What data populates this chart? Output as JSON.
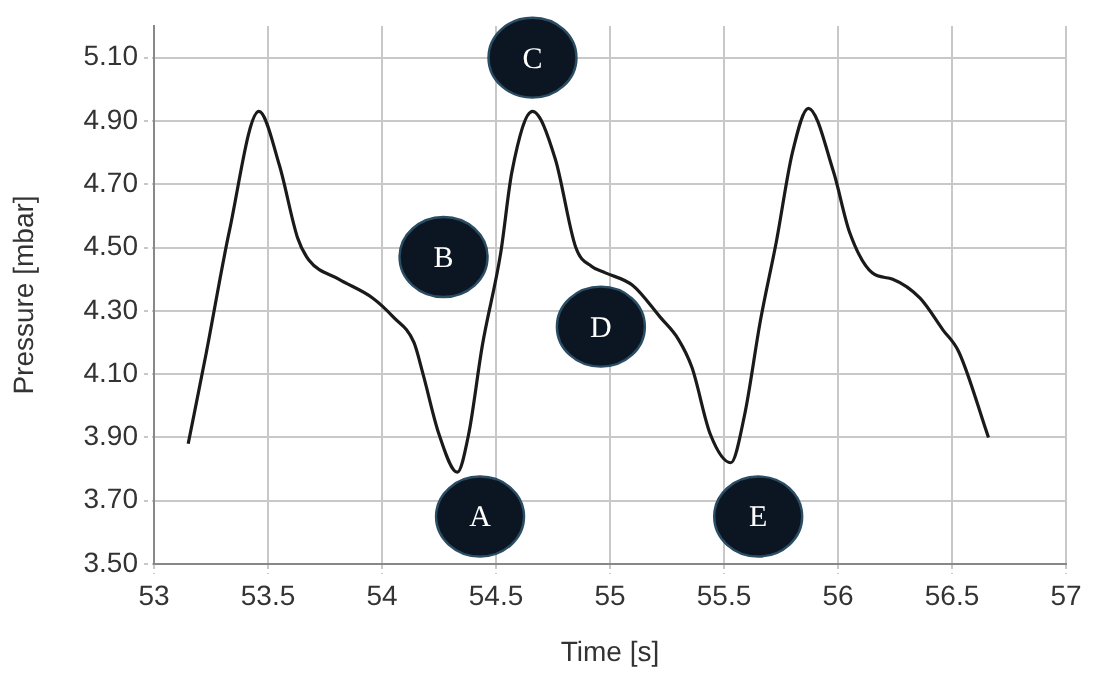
{
  "chart_data": {
    "type": "line",
    "xlabel": "Time [s]",
    "ylabel": "Pressure [mbar]",
    "xlim": [
      53,
      57
    ],
    "xticks": [
      53,
      53.5,
      54,
      54.5,
      55,
      55.5,
      56,
      56.5,
      57
    ],
    "ylim": [
      3.5,
      5.2
    ],
    "yticks": [
      {
        "value": 3.5,
        "label": "3.50"
      },
      {
        "value": 3.7,
        "label": "3.70"
      },
      {
        "value": 3.9,
        "label": "3.90"
      },
      {
        "value": 4.1,
        "label": "4.10"
      },
      {
        "value": 4.3,
        "label": "4.30"
      },
      {
        "value": 4.5,
        "label": "4.50"
      },
      {
        "value": 4.7,
        "label": "4.70"
      },
      {
        "value": 4.9,
        "label": "4.90"
      },
      {
        "value": 5.1,
        "label": "5.10"
      }
    ],
    "grid": true,
    "legend": false,
    "marker": "none",
    "line_style": "solid",
    "series": [
      {
        "color": "#1a1a1a",
        "x": [
          53.15,
          53.23,
          53.33,
          53.46,
          53.55,
          53.63,
          53.68,
          53.81,
          53.96,
          54.05,
          54.14,
          54.18,
          54.25,
          54.33,
          54.38,
          54.44,
          54.52,
          54.57,
          54.66,
          54.76,
          54.85,
          54.92,
          54.98,
          55.1,
          55.22,
          55.3,
          55.36,
          55.44,
          55.53,
          55.59,
          55.66,
          55.73,
          55.8,
          55.87,
          55.98,
          56.05,
          56.15,
          56.24,
          56.36,
          56.46,
          56.53,
          56.66
        ],
        "values": [
          3.88,
          4.17,
          4.55,
          4.93,
          4.76,
          4.53,
          4.46,
          4.4,
          4.34,
          4.28,
          4.2,
          4.1,
          3.91,
          3.79,
          3.91,
          4.19,
          4.48,
          4.74,
          4.93,
          4.78,
          4.5,
          4.44,
          4.42,
          4.38,
          4.28,
          4.21,
          4.12,
          3.91,
          3.82,
          3.97,
          4.27,
          4.52,
          4.8,
          4.94,
          4.74,
          4.55,
          4.42,
          4.4,
          4.34,
          4.24,
          4.17,
          3.9
        ]
      }
    ],
    "annotations": [
      {
        "text": "A",
        "x": 54.43,
        "y": 3.65
      },
      {
        "text": "B",
        "x": 54.27,
        "y": 4.47
      },
      {
        "text": "C",
        "x": 54.66,
        "y": 5.1
      },
      {
        "text": "D",
        "x": 54.96,
        "y": 4.25
      },
      {
        "text": "E",
        "x": 55.65,
        "y": 3.65
      }
    ]
  }
}
